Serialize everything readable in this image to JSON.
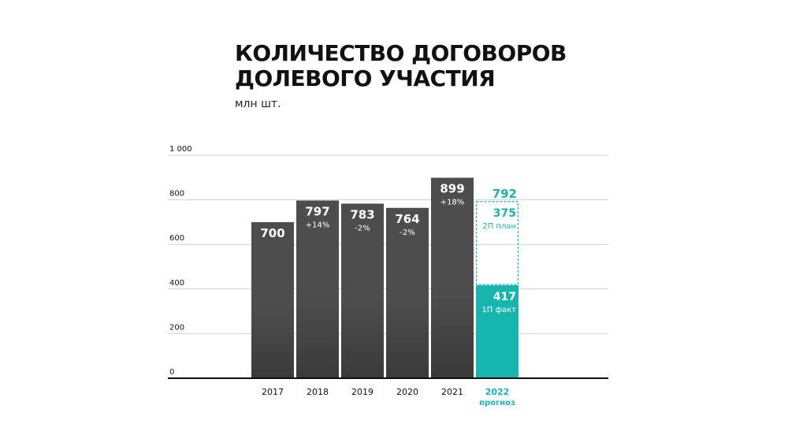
{
  "title_lines": [
    "КОЛИЧЕСТВО ДОГОВОРОВ",
    "ДОЛЕВОГО УЧАСТИЯ"
  ],
  "subtitle": "млн шт.",
  "colors": {
    "bar": "#4d4d4d",
    "bar_dark": "#3a3a3a",
    "accent": "#16b5ad",
    "axis": "#111111",
    "grid": "#d0d0d0",
    "tick_text": "#111111"
  },
  "chart_data": {
    "type": "bar",
    "ylim": [
      0,
      1000
    ],
    "yticks": [
      0,
      200,
      400,
      600,
      800,
      1000
    ],
    "ytick_labels": [
      "0",
      "200",
      "400",
      "600",
      "800",
      "1 000"
    ],
    "grid": true,
    "categories": [
      "2017",
      "2018",
      "2019",
      "2020",
      "2021"
    ],
    "values": [
      700,
      797,
      783,
      764,
      899
    ],
    "value_labels": [
      "700",
      "797",
      "783",
      "764",
      "899"
    ],
    "change_labels": [
      "",
      "+14%",
      "-2%",
      "-2%",
      "+18%"
    ],
    "forecast": {
      "category": "2022",
      "category_sub": "прогноз",
      "total": 792,
      "total_label": "792",
      "fact": 417,
      "fact_label": "417",
      "fact_caption": "1П факт",
      "plan": 375,
      "plan_label": "375",
      "plan_caption": "2П план"
    }
  }
}
